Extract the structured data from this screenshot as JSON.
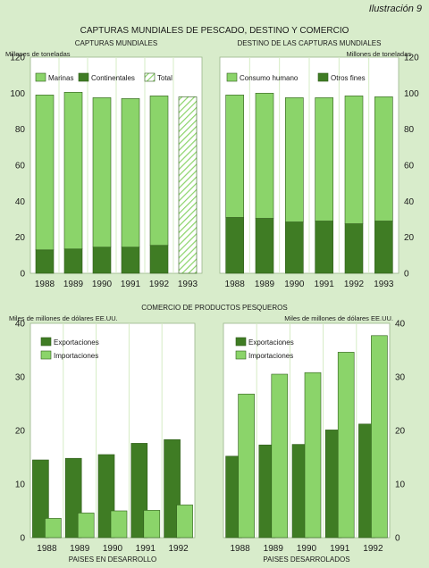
{
  "header": {
    "tag": "Ilustración 9"
  },
  "section_titles": {
    "top": "CAPTURAS MUNDIALES DE PESCADO, DESTINO Y COMERCIO",
    "bottom": "COMERCIO DE PRODUCTOS PESQUEROS"
  },
  "colors": {
    "light": "#8bd46a",
    "dark": "#3f7c24",
    "panel": "#ffffff",
    "bg": "#d8eccb",
    "grid": "#d5ecc4"
  },
  "chart_data": [
    {
      "type": "bar",
      "title": "CAPTURAS MUNDIALES",
      "ylabel": "Millones de toneladas",
      "ylim": [
        0,
        120
      ],
      "yticks": [
        0,
        20,
        40,
        60,
        80,
        100,
        120
      ],
      "categories": [
        "1988",
        "1989",
        "1990",
        "1991",
        "1992",
        "1993"
      ],
      "legend": [
        "Marinas",
        "Continentales",
        "Total"
      ],
      "series": [
        {
          "name": "Continentales",
          "values": [
            13,
            13.5,
            14.5,
            14.5,
            15.5,
            null
          ]
        },
        {
          "name": "Marinas",
          "values": [
            86,
            87,
            83,
            82.5,
            83,
            null
          ]
        },
        {
          "name": "Total",
          "values": [
            null,
            null,
            null,
            null,
            null,
            98
          ]
        }
      ]
    },
    {
      "type": "bar",
      "title": "DESTINO DE LAS CAPTURAS MUNDIALES",
      "ylabel": "Millones de toneladas",
      "ylim": [
        0,
        120
      ],
      "yticks": [
        0,
        20,
        40,
        60,
        80,
        100,
        120
      ],
      "categories": [
        "1988",
        "1989",
        "1990",
        "1991",
        "1992",
        "1993"
      ],
      "legend": [
        "Consumo humano",
        "Otros fines"
      ],
      "series": [
        {
          "name": "Otros fines",
          "values": [
            31,
            30.5,
            28.5,
            29,
            27.5,
            29
          ]
        },
        {
          "name": "Consumo humano",
          "values": [
            68,
            69.5,
            69,
            68.5,
            71,
            69
          ]
        }
      ]
    },
    {
      "type": "bar",
      "title": "PAISES EN DESARROLLO",
      "ylabel": "Miles de millones de dólares EE.UU.",
      "ylim": [
        0,
        40
      ],
      "yticks": [
        0,
        10,
        20,
        30,
        40
      ],
      "categories": [
        "1988",
        "1989",
        "1990",
        "1991",
        "1992"
      ],
      "legend": [
        "Exportaciones",
        "Importaciones"
      ],
      "series": [
        {
          "name": "Exportaciones",
          "values": [
            14.5,
            14.8,
            15.5,
            17.6,
            18.3
          ]
        },
        {
          "name": "Importaciones",
          "values": [
            3.6,
            4.6,
            5,
            5.1,
            6.1
          ]
        }
      ]
    },
    {
      "type": "bar",
      "title": "PAISES DESARROLADOS",
      "ylabel": "Miles de millones de dólares EE.UU.",
      "ylim": [
        0,
        40
      ],
      "yticks": [
        0,
        10,
        20,
        30,
        40
      ],
      "categories": [
        "1988",
        "1989",
        "1990",
        "1991",
        "1992"
      ],
      "legend": [
        "Exportaciones",
        "Importaciones"
      ],
      "series": [
        {
          "name": "Exportaciones",
          "values": [
            15.2,
            17.3,
            17.4,
            20.1,
            21.2
          ]
        },
        {
          "name": "Importaciones",
          "values": [
            26.8,
            30.5,
            30.8,
            34.6,
            37.7
          ]
        }
      ]
    }
  ]
}
